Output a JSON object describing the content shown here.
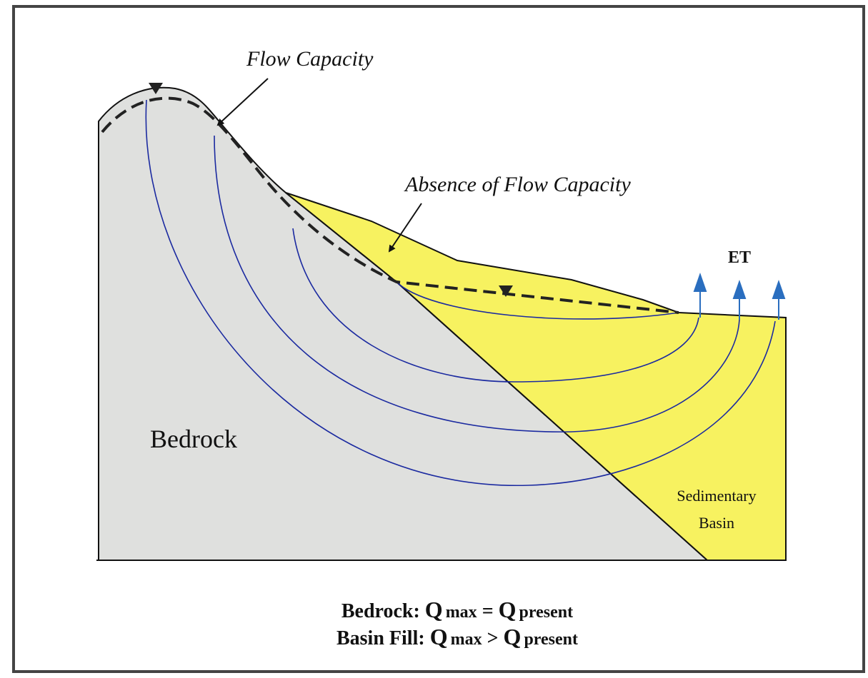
{
  "labels": {
    "flow_capacity": "Flow Capacity",
    "absence": "Absence of Flow Capacity",
    "et": "ET",
    "bedrock": "Bedrock",
    "basin": [
      "Sedimentary",
      "Basin"
    ]
  },
  "caption": [
    [
      "Bedrock: ",
      "Q",
      "max",
      " = ",
      "Q",
      "present"
    ],
    [
      "Basin Fill: ",
      "Q",
      "max",
      " > ",
      "Q",
      "present"
    ]
  ]
}
